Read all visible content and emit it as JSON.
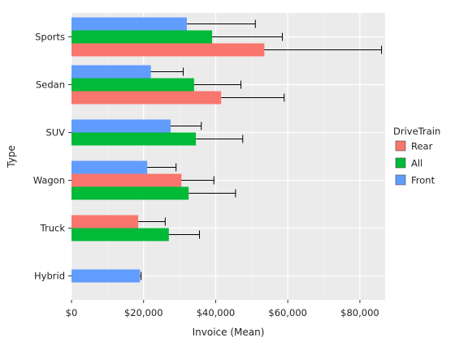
{
  "chart_data": {
    "type": "bar",
    "orientation": "horizontal",
    "title": "",
    "xlabel": "Invoice (Mean)",
    "ylabel": "Type",
    "xlim": [
      0,
      87000
    ],
    "xticks": [
      {
        "value": 0,
        "label": "$0"
      },
      {
        "value": 20000,
        "label": "$20,000"
      },
      {
        "value": 40000,
        "label": "$40,000"
      },
      {
        "value": 60000,
        "label": "$60,000"
      },
      {
        "value": 80000,
        "label": "$80,000"
      }
    ],
    "grid": true,
    "legend": {
      "title": "DriveTrain",
      "placement": "right",
      "entries": [
        {
          "name": "Rear",
          "color": "#F8766D"
        },
        {
          "name": "All",
          "color": "#00BA38"
        },
        {
          "name": "Front",
          "color": "#619CFF"
        }
      ]
    },
    "categories": [
      {
        "name": "Sports",
        "bars": [
          {
            "drive": "Front",
            "value": 32000,
            "err_high": 51000
          },
          {
            "drive": "All",
            "value": 39000,
            "err_high": 58500
          },
          {
            "drive": "Rear",
            "value": 53500,
            "err_high": 86000
          }
        ]
      },
      {
        "name": "Sedan",
        "bars": [
          {
            "drive": "Front",
            "value": 22000,
            "err_high": 31000
          },
          {
            "drive": "All",
            "value": 34000,
            "err_high": 47000
          },
          {
            "drive": "Rear",
            "value": 41500,
            "err_high": 59000
          }
        ]
      },
      {
        "name": "SUV",
        "bars": [
          {
            "drive": "Front",
            "value": 27500,
            "err_high": 36000
          },
          {
            "drive": "All",
            "value": 34500,
            "err_high": 47500
          }
        ]
      },
      {
        "name": "Wagon",
        "bars": [
          {
            "drive": "Front",
            "value": 21000,
            "err_high": 29000
          },
          {
            "drive": "Rear",
            "value": 30500,
            "err_high": 39500
          },
          {
            "drive": "All",
            "value": 32500,
            "err_high": 45500
          }
        ]
      },
      {
        "name": "Truck",
        "bars": [
          {
            "drive": "Rear",
            "value": 18500,
            "err_high": 26000
          },
          {
            "drive": "All",
            "value": 27000,
            "err_high": 35500
          }
        ]
      },
      {
        "name": "Hybrid",
        "bars": [
          {
            "drive": "Front",
            "value": 19000,
            "err_high": 19300
          }
        ]
      }
    ]
  }
}
